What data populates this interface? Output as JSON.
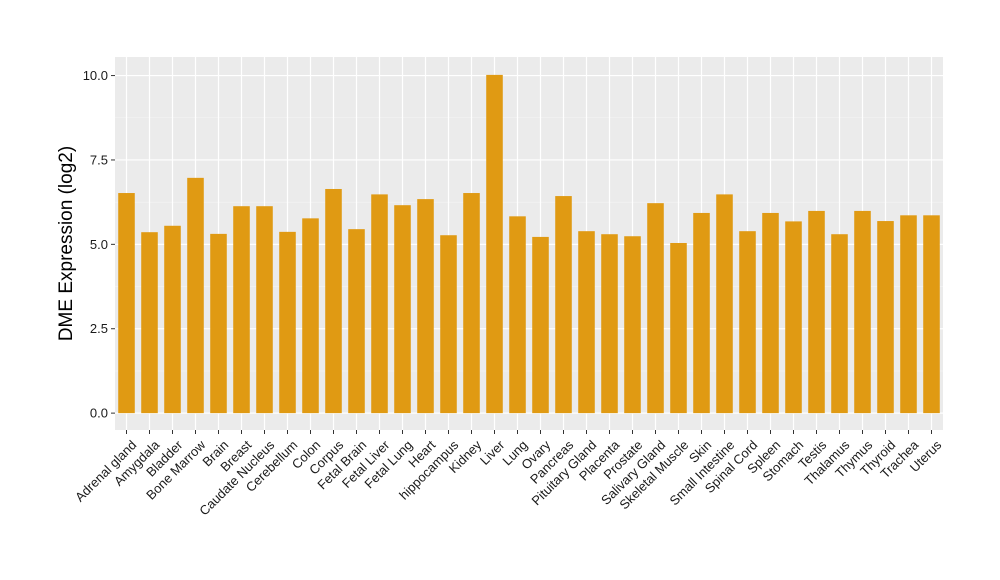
{
  "chart_data": {
    "type": "bar",
    "title": "",
    "xlabel": "",
    "ylabel": "DME Expression (log2)",
    "ylim": [
      -0.5,
      10.55
    ],
    "yticks": [
      0.0,
      2.5,
      5.0,
      7.5,
      10.0
    ],
    "ytick_labels": [
      "0.0",
      "2.5",
      "5.0",
      "7.5",
      "10.0"
    ],
    "grid": true,
    "legend": "none",
    "bar_color": "#E09A13",
    "panel_color": "#EBEBEB",
    "categories": [
      "Adrenal gland",
      "Amygdala",
      "Bladder",
      "Bone Marrow",
      "Brain",
      "Breast",
      "Caudate Nucleus",
      "Cerebellum",
      "Colon",
      "Corpus",
      "Fetal Brain",
      "Fetal Liver",
      "Fetal Lung",
      "Heart",
      "hippocampus",
      "Kidney",
      "Liver",
      "Lung",
      "Ovary",
      "Pancreas",
      "Pituitary Gland",
      "Placenta",
      "Prostate",
      "Salivary Gland",
      "Skeletal Muscle",
      "Skin",
      "Small Intestine",
      "Spinal Cord",
      "Spleen",
      "Stomach",
      "Testis",
      "Thalamus",
      "Thymus",
      "Thyroid",
      "Trachea",
      "Uterus"
    ],
    "values": [
      6.52,
      5.36,
      5.55,
      6.97,
      5.31,
      6.13,
      6.13,
      5.37,
      5.77,
      6.64,
      5.45,
      6.48,
      6.16,
      6.34,
      5.27,
      6.52,
      10.02,
      5.83,
      5.22,
      6.43,
      5.39,
      5.3,
      5.24,
      6.22,
      5.04,
      5.93,
      6.48,
      5.39,
      5.93,
      5.68,
      5.99,
      5.3,
      5.99,
      5.69,
      5.86,
      5.86
    ]
  }
}
